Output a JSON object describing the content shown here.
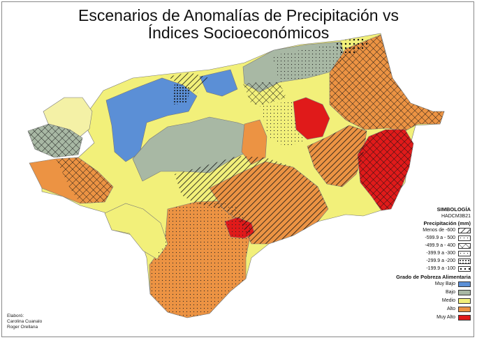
{
  "title_line1": "Escenarios de Anomalías de Precipitación vs",
  "title_line2": "Índices Socioeconómicos",
  "legend": {
    "heading": "SIMBOLOGÍA",
    "model": "HADCM3B21",
    "precip_heading": "Precipitación (mm)",
    "precip_classes": [
      {
        "label": "Menos de -600",
        "pattern": "hatch-diagonal"
      },
      {
        "label": "-599.9 a - 500",
        "pattern": "dots-sparse"
      },
      {
        "label": "-499.9 a - 400",
        "pattern": "crosshatch"
      },
      {
        "label": "-399.9 a -300",
        "pattern": "dots-fine"
      },
      {
        "label": "-299.9 a -200",
        "pattern": "dots-dense"
      },
      {
        "label": "-199.9 a -100",
        "pattern": "dots-coarse"
      }
    ],
    "poverty_heading": "Grado de Pobreza Alimentaria",
    "poverty_classes": [
      {
        "label": "Muy Bajo",
        "color": "#5b8fd6"
      },
      {
        "label": "Bajo",
        "color": "#a8b8a4"
      },
      {
        "label": "Medio",
        "color": "#f2f07a"
      },
      {
        "label": "Alto",
        "color": "#ec9343"
      },
      {
        "label": "Muy Alto",
        "color": "#e01a1a"
      }
    ]
  },
  "credits": [
    "Elaboró:",
    "Carolina Cuanalo",
    "Roger Orellana"
  ]
}
